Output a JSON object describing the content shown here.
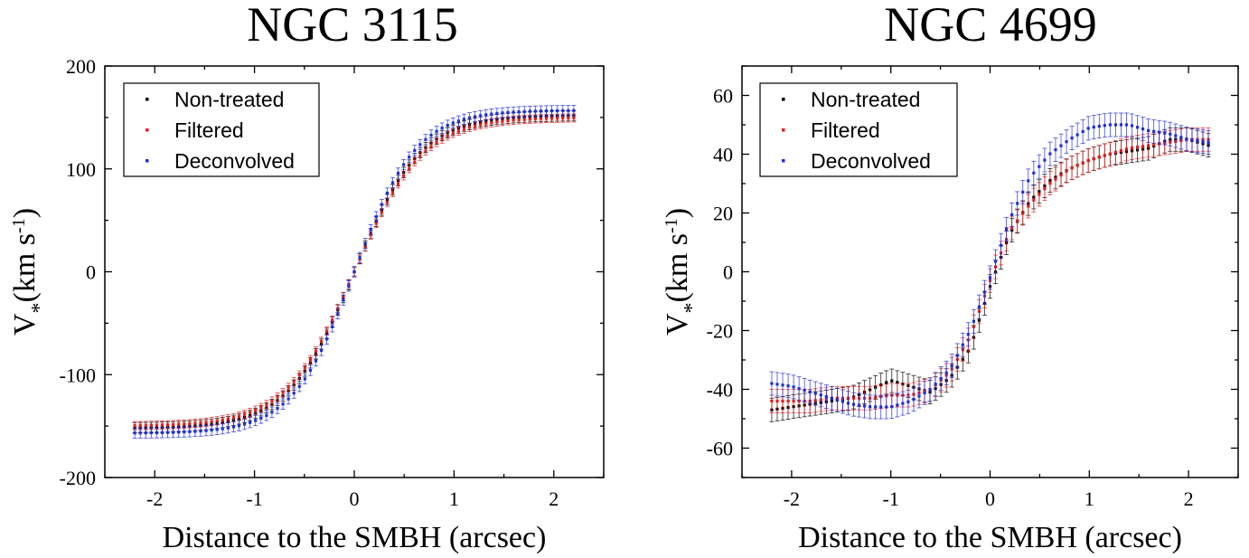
{
  "chart_data": [
    {
      "type": "scatter",
      "title": "NGC 3115",
      "xlabel": "Distance to the SMBH (arcsec)",
      "ylabel": {
        "main": "V",
        "sub": "*",
        "unit": "(km s",
        "sup": "-1",
        "close": ")"
      },
      "xlim": [
        -2.5,
        2.5
      ],
      "ylim": [
        -200,
        200
      ],
      "xticks": [
        -2,
        -1,
        0,
        1,
        2
      ],
      "yticks": [
        -200,
        -100,
        0,
        100,
        200
      ],
      "legend": [
        "Non-treated",
        "Filtered",
        "Deconvolved"
      ],
      "legend_position": "top-left",
      "xrange": [
        -2.2,
        2.2
      ],
      "npoints": 81,
      "series": [
        {
          "name": "Non-treated",
          "color": "#000000",
          "model": "tanh",
          "amplitude": 152,
          "scale": 0.66,
          "errorbar": 5
        },
        {
          "name": "Filtered",
          "color": "#e02020",
          "model": "tanh",
          "amplitude": 150,
          "scale": 0.68,
          "errorbar": 4
        },
        {
          "name": "Deconvolved",
          "color": "#1f2fd6",
          "model": "tanh",
          "amplitude": 157,
          "scale": 0.62,
          "errorbar": 5
        }
      ]
    },
    {
      "type": "scatter",
      "title": "NGC 4699",
      "xlabel": "Distance to the SMBH (arcsec)",
      "ylabel": {
        "main": "V",
        "sub": "*",
        "unit": "(km s",
        "sup": "-1",
        "close": ")"
      },
      "xlim": [
        -2.5,
        2.5
      ],
      "ylim": [
        -70,
        70
      ],
      "xticks": [
        -2,
        -1,
        0,
        1,
        2
      ],
      "yticks": [
        -60,
        -40,
        -20,
        0,
        20,
        40,
        60
      ],
      "legend": [
        "Non-treated",
        "Filtered",
        "Deconvolved"
      ],
      "legend_position": "top-left",
      "xrange": [
        -2.2,
        2.2
      ],
      "npoints": 81,
      "series": [
        {
          "name": "Non-treated",
          "color": "#000000",
          "model": "points",
          "x": [
            -2.2,
            -2.0,
            -1.8,
            -1.6,
            -1.4,
            -1.2,
            -1.0,
            -0.8,
            -0.6,
            -0.4,
            -0.2,
            0.0,
            0.2,
            0.4,
            0.6,
            0.8,
            1.0,
            1.2,
            1.4,
            1.6,
            1.8,
            2.0,
            2.2
          ],
          "y": [
            -47,
            -46,
            -45,
            -44,
            -43,
            -40,
            -37,
            -39,
            -41,
            -36,
            -26,
            -5,
            13,
            24,
            31,
            35,
            38,
            40,
            41,
            42,
            45,
            45,
            43
          ],
          "errorbar": 4
        },
        {
          "name": "Filtered",
          "color": "#e02020",
          "model": "points",
          "x": [
            -2.2,
            -2.0,
            -1.8,
            -1.6,
            -1.4,
            -1.2,
            -1.0,
            -0.8,
            -0.6,
            -0.4,
            -0.2,
            0.0,
            0.2,
            0.4,
            0.6,
            0.8,
            1.0,
            1.2,
            1.4,
            1.6,
            1.8,
            2.0,
            2.2
          ],
          "y": [
            -44,
            -44,
            -44,
            -43,
            -43,
            -43,
            -42,
            -42,
            -40,
            -34,
            -22,
            -3,
            14,
            23,
            30,
            35,
            38,
            40,
            42,
            43,
            44,
            45,
            45
          ],
          "errorbar": 4
        },
        {
          "name": "Deconvolved",
          "color": "#1f2fd6",
          "model": "points",
          "x": [
            -2.2,
            -2.0,
            -1.8,
            -1.6,
            -1.4,
            -1.2,
            -1.0,
            -0.8,
            -0.6,
            -0.4,
            -0.2,
            0.0,
            0.2,
            0.4,
            0.6,
            0.8,
            1.0,
            1.2,
            1.4,
            1.6,
            1.8,
            2.0,
            2.2
          ],
          "y": [
            -38,
            -39,
            -41,
            -43,
            -45,
            -46,
            -46,
            -44,
            -40,
            -33,
            -20,
            -2,
            18,
            32,
            40,
            45,
            49,
            50,
            50,
            48,
            47,
            45,
            44
          ],
          "errorbar": 4
        }
      ]
    }
  ]
}
